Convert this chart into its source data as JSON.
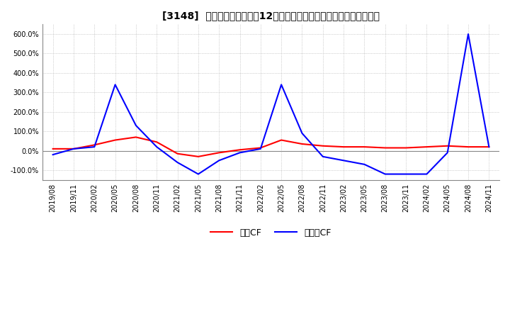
{
  "title": "[3148]  キャッシュフローの12か月移動合計の対前年同期増減率の推移",
  "legend_labels": [
    "営業CF",
    "フリーCF"
  ],
  "line_colors": [
    "#ff0000",
    "#0000ff"
  ],
  "ylim": [
    -150,
    650
  ],
  "yticks": [
    -100,
    0,
    100,
    200,
    300,
    400,
    500,
    600
  ],
  "ytick_labels": [
    "-100.0%",
    "0.0%",
    "100.0%",
    "200.0%",
    "300.0%",
    "400.0%",
    "500.0%",
    "600.0%"
  ],
  "background_color": "#ffffff",
  "grid_color": "#aaaaaa",
  "dates": [
    "2019/08",
    "2019/11",
    "2020/02",
    "2020/05",
    "2020/08",
    "2020/11",
    "2021/02",
    "2021/05",
    "2021/08",
    "2021/11",
    "2022/02",
    "2022/05",
    "2022/08",
    "2022/11",
    "2023/02",
    "2023/05",
    "2023/08",
    "2023/11",
    "2024/02",
    "2024/05",
    "2024/08",
    "2024/11"
  ],
  "eigyo_cf": [
    10,
    10,
    30,
    55,
    70,
    45,
    -15,
    -30,
    -10,
    5,
    15,
    55,
    35,
    25,
    20,
    20,
    15,
    15,
    20,
    25,
    20,
    20
  ],
  "free_cf": [
    -20,
    10,
    20,
    340,
    130,
    20,
    -60,
    -120,
    -50,
    -10,
    10,
    340,
    90,
    -30,
    -50,
    -70,
    -120,
    -120,
    -120,
    -10,
    600,
    20
  ]
}
